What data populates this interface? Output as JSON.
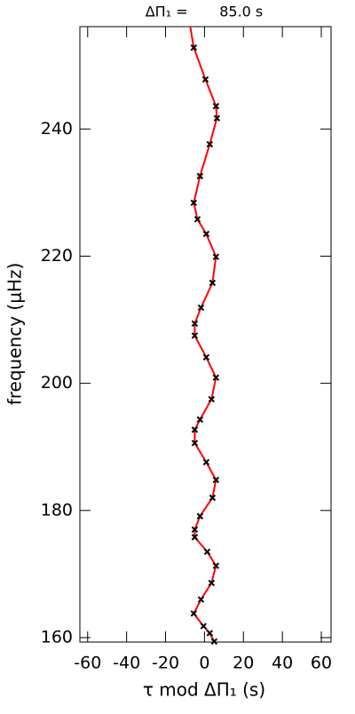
{
  "chart_data": {
    "type": "scatter",
    "title": "ΔΠ₁ =       85.0 s",
    "x_label": "τ mod ΔΠ₁ (s)",
    "y_label": "frequency (μHz)",
    "xlim": [
      -64,
      65
    ],
    "xticks": [
      -60,
      -40,
      -20,
      0,
      20,
      40,
      60
    ],
    "ylim": [
      159.3,
      256.1
    ],
    "yticks": [
      160,
      180,
      200,
      220,
      240
    ],
    "grid": false,
    "series": [
      {
        "color": "#ff0000",
        "style": "line",
        "x": [
          -7.3,
          -5.5,
          0.5,
          5.9,
          6.4,
          2.7,
          -2.3,
          -5.5,
          -3.6,
          0.9,
          5.9,
          4.1,
          -1.8,
          -5.0,
          -5.0,
          0.9,
          5.9,
          3.6,
          -2.3,
          -5.0,
          -5.0,
          0.9,
          5.9,
          4.1,
          -2.3,
          -5.0,
          -5.0,
          1.4,
          5.9,
          3.6,
          -1.8,
          -5.5,
          -0.5,
          2.7,
          5.0
        ],
        "values": [
          256.1,
          252.8,
          247.8,
          243.6,
          241.7,
          237.6,
          232.6,
          228.4,
          225.8,
          223.5,
          219.9,
          215.8,
          211.9,
          209.4,
          207.5,
          204.1,
          200.9,
          197.5,
          194.3,
          192.7,
          190.6,
          187.6,
          184.8,
          182.0,
          179.1,
          177.0,
          175.8,
          173.5,
          171.3,
          168.6,
          166.0,
          163.8,
          161.8,
          160.7,
          159.4
        ]
      },
      {
        "color": "#000000",
        "style": "marker",
        "x": [
          -5.5,
          0.5,
          5.9,
          6.4,
          2.7,
          -2.3,
          -5.5,
          -3.6,
          0.9,
          5.9,
          4.1,
          -1.8,
          -5.0,
          -5.0,
          0.9,
          5.9,
          3.6,
          -2.3,
          -5.0,
          -5.0,
          0.9,
          5.9,
          4.1,
          -2.3,
          -5.0,
          -5.0,
          1.4,
          5.9,
          3.6,
          -1.8,
          -5.5,
          -0.5,
          2.7,
          5.0
        ],
        "values": [
          252.8,
          247.8,
          243.6,
          241.7,
          237.6,
          232.6,
          228.4,
          225.8,
          223.5,
          219.9,
          215.8,
          211.9,
          209.4,
          207.5,
          204.1,
          200.9,
          197.5,
          194.3,
          192.7,
          190.6,
          187.6,
          184.8,
          182.0,
          179.1,
          177.0,
          175.8,
          173.5,
          171.3,
          168.6,
          166.0,
          163.8,
          161.8,
          160.7,
          159.4
        ]
      }
    ]
  }
}
